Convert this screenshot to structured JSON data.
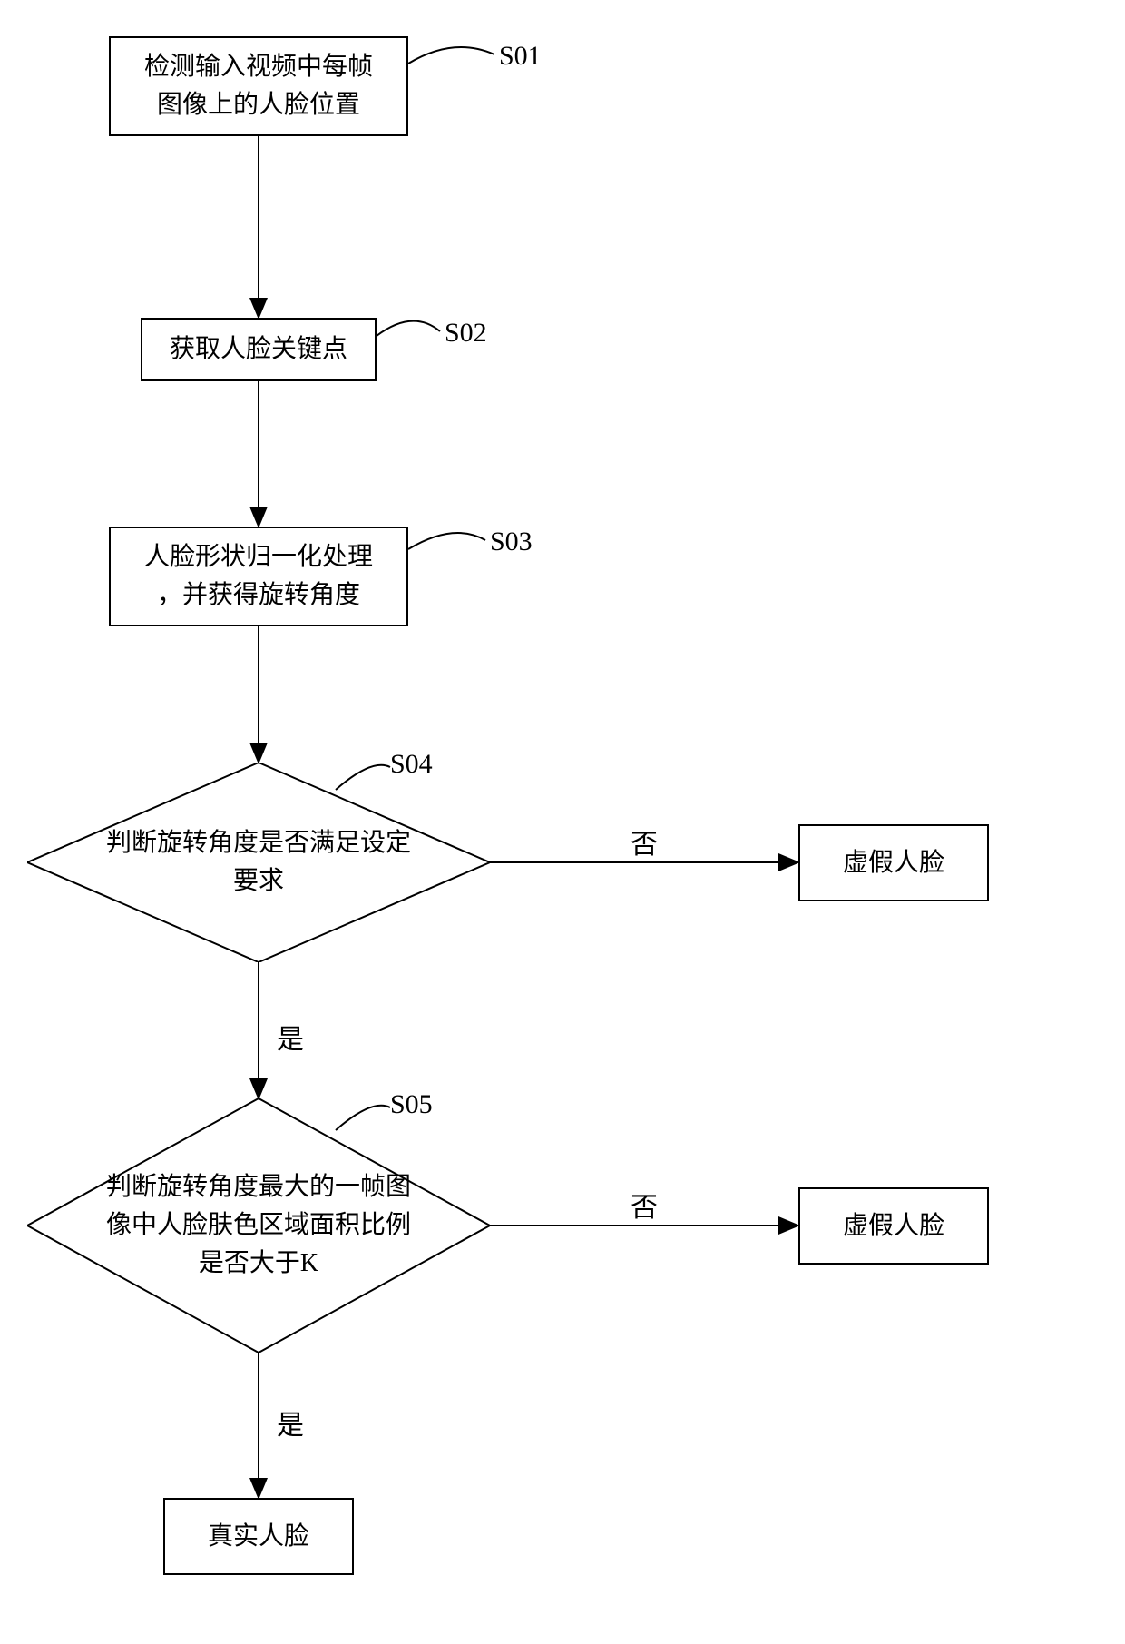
{
  "type": "flowchart",
  "nodes": {
    "s01": {
      "text": "检测输入视频中每帧\n图像上的人脸位置",
      "label": "S01"
    },
    "s02": {
      "text": "获取人脸关键点",
      "label": "S02"
    },
    "s03": {
      "text": "人脸形状归一化处理\n，并获得旋转角度",
      "label": "S03"
    },
    "s04": {
      "text": "判断旋转角度是否满足设定\n要求",
      "label": "S04"
    },
    "s05": {
      "text": "判断旋转角度最大的一帧图\n像中人脸肤色区域面积比例\n是否大于K",
      "label": "S05"
    },
    "fake1": {
      "text": "虚假人脸"
    },
    "fake2": {
      "text": "虚假人脸"
    },
    "real": {
      "text": "真实人脸"
    }
  },
  "edges": {
    "yes1": "是",
    "no1": "否",
    "yes2": "是",
    "no2": "否"
  },
  "style": {
    "stroke": "#000000",
    "stroke_width": 2,
    "background": "#ffffff",
    "font_size": 28
  }
}
